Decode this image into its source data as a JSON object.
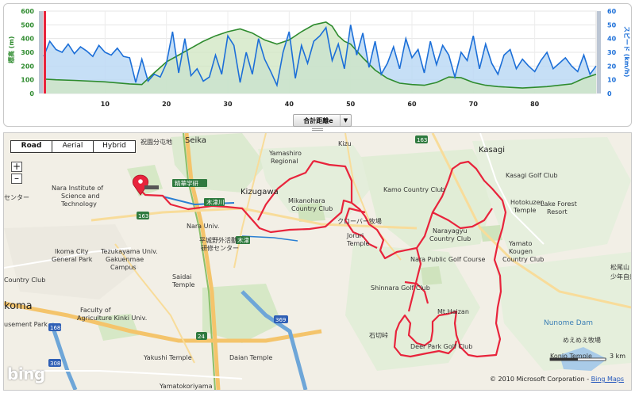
{
  "chart": {
    "left_axis_label": "標高 (m)",
    "right_axis_label": "スピード (km/h)",
    "left_ticks": [
      "600",
      "500",
      "400",
      "300",
      "200",
      "100",
      "0"
    ],
    "right_ticks": [
      "60",
      "50",
      "40",
      "30",
      "20",
      "10",
      "0"
    ],
    "x_ticks": [
      "10",
      "20",
      "30",
      "40",
      "50",
      "60",
      "70",
      "80"
    ],
    "select_label": "合計距離e",
    "colors": {
      "elevation": "#2e8b2e",
      "elevation_fill": "#cfe5c0",
      "speed": "#1c6fd8",
      "speed_fill": "#bcd9f5"
    }
  },
  "chart_data": {
    "type": "area",
    "xlabel": "",
    "xlim": [
      0,
      90
    ],
    "ylim_left": [
      0,
      600
    ],
    "ylim_right": [
      0,
      60
    ],
    "series": [
      {
        "name": "標高 (m)",
        "axis": "left",
        "x": [
          0,
          2,
          5,
          10,
          14,
          16,
          18,
          20,
          22,
          24,
          26,
          28,
          30,
          32,
          34,
          36,
          38,
          40,
          42,
          44,
          46,
          47,
          48,
          49,
          50,
          52,
          54,
          56,
          58,
          60,
          62,
          64,
          66,
          68,
          70,
          72,
          74,
          76,
          78,
          80,
          82,
          84,
          86,
          88,
          90
        ],
        "values": [
          105,
          100,
          95,
          85,
          70,
          65,
          150,
          230,
          280,
          330,
          380,
          420,
          450,
          470,
          440,
          390,
          360,
          390,
          450,
          500,
          520,
          490,
          420,
          380,
          360,
          260,
          170,
          110,
          75,
          65,
          60,
          80,
          120,
          115,
          80,
          60,
          50,
          45,
          40,
          45,
          50,
          60,
          70,
          110,
          140
        ]
      },
      {
        "name": "スピード (km/h)",
        "axis": "right",
        "x": [
          0,
          1,
          2,
          3,
          4,
          5,
          6,
          7,
          8,
          9,
          10,
          11,
          12,
          13,
          14,
          15,
          16,
          17,
          18,
          19,
          20,
          21,
          22,
          23,
          24,
          25,
          26,
          27,
          28,
          29,
          30,
          31,
          32,
          33,
          34,
          35,
          36,
          37,
          38,
          39,
          40,
          41,
          42,
          43,
          44,
          45,
          46,
          47,
          48,
          49,
          50,
          51,
          52,
          53,
          54,
          55,
          56,
          57,
          58,
          59,
          60,
          61,
          62,
          63,
          64,
          65,
          66,
          67,
          68,
          69,
          70,
          71,
          72,
          73,
          74,
          75,
          76,
          77,
          78,
          79,
          80,
          81,
          82,
          83,
          84,
          85,
          86,
          87,
          88,
          89,
          90
        ],
        "values": [
          27,
          38,
          32,
          30,
          36,
          29,
          34,
          31,
          27,
          35,
          30,
          28,
          33,
          27,
          26,
          8,
          25,
          9,
          14,
          12,
          22,
          45,
          15,
          40,
          13,
          18,
          9,
          12,
          28,
          14,
          42,
          35,
          8,
          30,
          14,
          40,
          25,
          16,
          6,
          30,
          45,
          11,
          35,
          22,
          38,
          42,
          48,
          24,
          36,
          18,
          50,
          28,
          44,
          19,
          38,
          14,
          22,
          34,
          18,
          40,
          26,
          32,
          15,
          38,
          21,
          35,
          28,
          12,
          30,
          24,
          42,
          18,
          36,
          22,
          14,
          28,
          32,
          18,
          25,
          20,
          16,
          24,
          30,
          18,
          22,
          26,
          20,
          16,
          28,
          14,
          20
        ]
      }
    ]
  },
  "map": {
    "types": [
      "Road",
      "Aerial",
      "Hybrid"
    ],
    "active_type": "Road",
    "zoom_in": "+",
    "zoom_out": "–",
    "logo": "bing",
    "scale": "3 km",
    "copyright_text": "© 2010 Microsoft Corporation -",
    "copyright_link": "Bing Maps",
    "route_color": "#e8243c",
    "labels": {
      "seika": "Seika",
      "kasagi": "Kasagi",
      "kizugawa": "Kizugawa",
      "yamashiro": "Yamashiro",
      "regional": "Regional",
      "seikagaku": "精華学研",
      "mikanohara1": "Mikanohara",
      "mikanohara2": "Country Club",
      "kamo": "Kamo Country Club",
      "kasagi_golf": "Kasagi Golf Club",
      "hotokuzen1": "Hotokuzen",
      "hotokuzen2": "Temple",
      "lakefor1": "Lake Forest",
      "lakefor2": "Resort",
      "narayagyu1": "Narayagyu",
      "narayagyu2": "Country Club",
      "yamato1": "Yamato",
      "yamato2": "Kougen",
      "yamato3": "Country Club",
      "clover": "クローバー牧場",
      "joruri1": "Joruri",
      "joruri2": "Temple",
      "narapub": "Nara Public Golf Course",
      "shinnara": "Shinnara Golf Club",
      "mthaizan": "Mt.Haizan",
      "deerpark": "Deer Park Golf Club",
      "ishikiri": "石切峠",
      "naist1": "Nara Institute of",
      "naist2": "Science and",
      "naist3": "Technology",
      "naraunivsm": "Nara Univ.",
      "ikoma1": "Ikoma City",
      "ikoma2": "General Park",
      "tezuka1": "Tezukayama Univ.",
      "tezuka2": "Gakuenmae",
      "tezuka3": "Campus",
      "saidai1": "Saidai",
      "saidai2": "Temple",
      "heijo1": "平城野外活動",
      "heijo2": "研修センター",
      "faculty1": "Faculty of",
      "faculty2": "Agriculture Kinki Univ.",
      "yakushi": "Yakushi Temple",
      "daian": "Daian Temple",
      "koma": "koma",
      "countryclub": "Country Club",
      "musepark": "usement Park",
      "kizu": "木津",
      "kizugawariver": "木津川",
      "nunome": "Nunome Dam",
      "konio": "Konio Temple",
      "meemee": "めえめえ牧場",
      "matsuo": "松尾山",
      "shonen": "少年自然",
      "senta": "センター",
      "yamatokoriyama": "Yamatokoriyama",
      "kizu_top": "Kizu",
      "shikei": "祝園分屯地",
      "r163a": "163",
      "r163b": "163",
      "r168": "168",
      "r308": "308",
      "r369": "369",
      "r24": "24"
    }
  }
}
